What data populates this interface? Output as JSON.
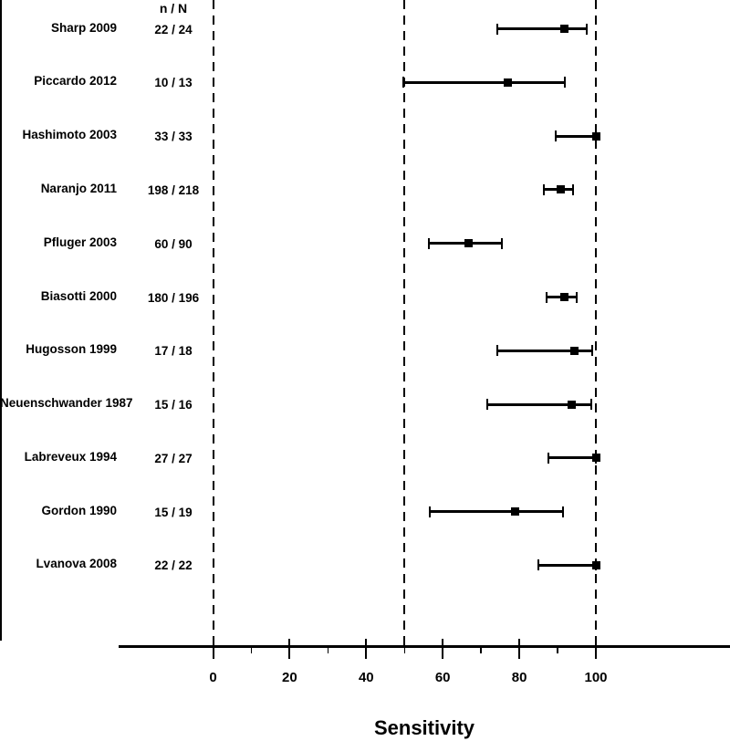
{
  "colors": {
    "foreground": "#000000",
    "background": "#ffffff"
  },
  "chart_data": {
    "type": "scatter",
    "subtype": "forest-plot",
    "title": "",
    "xlabel": "Sensitivity",
    "column_header": "n / N",
    "xlim": [
      0,
      100
    ],
    "x_ticks_major": [
      0,
      20,
      40,
      60,
      80,
      100
    ],
    "x_ticks_minor": [
      10,
      30,
      50,
      70,
      90
    ],
    "reference_lines_dashed": [
      0,
      50,
      100
    ],
    "grid": false,
    "legend": false,
    "studies": [
      {
        "label": "Sharp 2009",
        "n_over_N": "22 / 24",
        "n": 22,
        "N": 24,
        "sensitivity": 91.7,
        "ci_low": 74.2,
        "ci_high": 97.7
      },
      {
        "label": "Piccardo 2012",
        "n_over_N": "10 / 13",
        "n": 10,
        "N": 13,
        "sensitivity": 76.9,
        "ci_low": 49.7,
        "ci_high": 91.8
      },
      {
        "label": "Hashimoto 2003",
        "n_over_N": "33 / 33",
        "n": 33,
        "N": 33,
        "sensitivity": 100,
        "ci_low": 89.6,
        "ci_high": 100
      },
      {
        "label": "Naranjo 2011",
        "n_over_N": "198 / 218",
        "n": 198,
        "N": 218,
        "sensitivity": 90.8,
        "ci_low": 86.3,
        "ci_high": 94.0
      },
      {
        "label": "Pfluger 2003",
        "n_over_N": "60 / 90",
        "n": 60,
        "N": 90,
        "sensitivity": 66.7,
        "ci_low": 56.4,
        "ci_high": 75.5
      },
      {
        "label": "Biasotti 2000",
        "n_over_N": "180 / 196",
        "n": 180,
        "N": 196,
        "sensitivity": 91.8,
        "ci_low": 87.2,
        "ci_high": 94.9
      },
      {
        "label": "Hugosson 1999",
        "n_over_N": "17 / 18",
        "n": 17,
        "N": 18,
        "sensitivity": 94.4,
        "ci_low": 74.2,
        "ci_high": 99.0
      },
      {
        "label": "Neuenschwander 1987",
        "n_over_N": "15 / 16",
        "n": 15,
        "N": 16,
        "sensitivity": 93.8,
        "ci_low": 71.7,
        "ci_high": 98.9
      },
      {
        "label": "Labreveux 1994",
        "n_over_N": "27 / 27",
        "n": 27,
        "N": 27,
        "sensitivity": 100,
        "ci_low": 87.5,
        "ci_high": 100
      },
      {
        "label": "Gordon 1990",
        "n_over_N": "15 / 19",
        "n": 15,
        "N": 19,
        "sensitivity": 78.9,
        "ci_low": 56.7,
        "ci_high": 91.5
      },
      {
        "label": "Lvanova 2008",
        "n_over_N": "22 / 22",
        "n": 22,
        "N": 22,
        "sensitivity": 100,
        "ci_low": 85.1,
        "ci_high": 100
      }
    ]
  }
}
